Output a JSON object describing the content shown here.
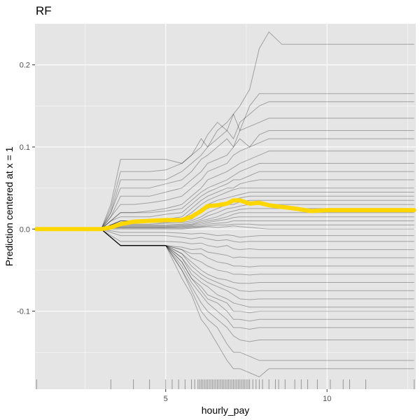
{
  "chart_data": {
    "type": "line",
    "title": "RF",
    "xlabel": "hourly_pay",
    "ylabel": "Prediction centered at x = 1",
    "xlim": [
      0.95,
      12.75
    ],
    "ylim": [
      -0.195,
      0.25
    ],
    "x_ticks": [
      5,
      10
    ],
    "x_tick_labels": [
      "5",
      "10"
    ],
    "y_ticks": [
      -0.1,
      0.0,
      0.1,
      0.2
    ],
    "y_tick_labels": [
      "-0.1",
      "0.0",
      "0.1",
      "0.2"
    ],
    "grid": true,
    "legend": "none",
    "colors": {
      "panel": "#e5e5e5",
      "grid": "#ffffff",
      "ice": "#000000",
      "pdp": "#ffd700"
    },
    "pdp_series": {
      "x": [
        1.0,
        2.0,
        3.0,
        3.3,
        3.6,
        4.0,
        4.5,
        5.0,
        5.5,
        5.8,
        6.1,
        6.3,
        6.6,
        6.9,
        7.1,
        7.3,
        7.6,
        7.9,
        8.2,
        8.6,
        9.0,
        9.5,
        10.0,
        11.0,
        12.0,
        12.7
      ],
      "y": [
        0.0,
        0.0,
        0.0,
        0.002,
        0.006,
        0.009,
        0.01,
        0.011,
        0.011,
        0.015,
        0.022,
        0.028,
        0.029,
        0.031,
        0.035,
        0.035,
        0.031,
        0.032,
        0.029,
        0.027,
        0.025,
        0.022,
        0.023,
        0.023,
        0.023,
        0.023
      ]
    },
    "ice_grid_x": [
      1.0,
      2.0,
      3.0,
      3.3,
      3.6,
      4.0,
      4.5,
      5.0,
      5.5,
      5.8,
      6.1,
      6.3,
      6.6,
      6.9,
      7.1,
      7.3,
      7.6,
      7.9,
      8.2,
      8.6,
      9.0,
      9.5,
      10.0,
      11.0,
      12.0,
      12.7
    ],
    "ice_curves": [
      [
        0,
        0,
        0,
        0.03,
        0.085,
        0.085,
        0.085,
        0.085,
        0.08,
        0.09,
        0.1,
        0.115,
        0.13,
        0.12,
        0.14,
        0.15,
        0.17,
        0.22,
        0.24,
        0.225,
        0.225,
        0.225,
        0.225,
        0.225,
        0.225,
        0.225
      ],
      [
        0,
        0,
        0,
        0.025,
        0.07,
        0.07,
        0.07,
        0.072,
        0.08,
        0.09,
        0.11,
        0.1,
        0.12,
        0.13,
        0.14,
        0.12,
        0.15,
        0.165,
        0.165,
        0.165,
        0.165,
        0.165,
        0.165,
        0.165,
        0.165,
        0.165
      ],
      [
        0,
        0,
        0,
        0.02,
        0.06,
        0.06,
        0.06,
        0.06,
        0.07,
        0.08,
        0.09,
        0.1,
        0.11,
        0.12,
        0.11,
        0.13,
        0.14,
        0.15,
        0.155,
        0.155,
        0.155,
        0.155,
        0.155,
        0.155,
        0.155,
        0.155
      ],
      [
        0,
        0,
        0,
        0.02,
        0.05,
        0.05,
        0.05,
        0.055,
        0.06,
        0.07,
        0.085,
        0.09,
        0.1,
        0.11,
        0.1,
        0.12,
        0.125,
        0.13,
        0.135,
        0.135,
        0.135,
        0.135,
        0.135,
        0.135,
        0.135,
        0.135
      ],
      [
        0,
        0,
        0,
        0.015,
        0.04,
        0.04,
        0.04,
        0.045,
        0.05,
        0.06,
        0.07,
        0.08,
        0.085,
        0.09,
        0.1,
        0.11,
        0.1,
        0.115,
        0.12,
        0.12,
        0.12,
        0.12,
        0.12,
        0.12,
        0.12,
        0.12
      ],
      [
        0,
        0,
        0,
        0.015,
        0.03,
        0.03,
        0.032,
        0.035,
        0.04,
        0.05,
        0.06,
        0.07,
        0.075,
        0.08,
        0.09,
        0.095,
        0.1,
        0.105,
        0.11,
        0.11,
        0.11,
        0.11,
        0.11,
        0.11,
        0.11,
        0.11
      ],
      [
        0,
        0,
        0,
        0.01,
        0.02,
        0.02,
        0.022,
        0.025,
        0.03,
        0.04,
        0.05,
        0.06,
        0.065,
        0.07,
        0.075,
        0.08,
        0.085,
        0.09,
        0.095,
        0.095,
        0.095,
        0.095,
        0.095,
        0.095,
        0.095,
        0.095
      ],
      [
        0,
        0,
        0,
        0.01,
        0.02,
        0.02,
        0.02,
        0.022,
        0.025,
        0.035,
        0.045,
        0.05,
        0.055,
        0.06,
        0.065,
        0.07,
        0.075,
        0.08,
        0.08,
        0.08,
        0.08,
        0.08,
        0.08,
        0.08,
        0.08,
        0.08
      ],
      [
        0,
        0,
        0,
        0.01,
        0.015,
        0.015,
        0.015,
        0.018,
        0.02,
        0.03,
        0.04,
        0.045,
        0.05,
        0.055,
        0.06,
        0.06,
        0.065,
        0.07,
        0.07,
        0.07,
        0.07,
        0.07,
        0.07,
        0.07,
        0.07,
        0.07
      ],
      [
        0,
        0,
        0,
        0.005,
        0.01,
        0.01,
        0.01,
        0.012,
        0.015,
        0.025,
        0.035,
        0.04,
        0.045,
        0.05,
        0.05,
        0.055,
        0.058,
        0.06,
        0.06,
        0.06,
        0.06,
        0.06,
        0.06,
        0.06,
        0.06,
        0.06
      ],
      [
        0,
        0,
        0,
        0.005,
        0.01,
        0.01,
        0.01,
        0.01,
        0.012,
        0.02,
        0.03,
        0.035,
        0.04,
        0.045,
        0.048,
        0.05,
        0.05,
        0.05,
        0.05,
        0.05,
        0.05,
        0.05,
        0.05,
        0.05,
        0.05,
        0.05
      ],
      [
        0,
        0,
        0,
        0.005,
        0.01,
        0.01,
        0.01,
        0.01,
        0.01,
        0.015,
        0.025,
        0.03,
        0.035,
        0.038,
        0.04,
        0.042,
        0.045,
        0.045,
        0.045,
        0.045,
        0.045,
        0.045,
        0.045,
        0.045,
        0.045,
        0.045
      ],
      [
        0,
        0,
        0,
        0.005,
        0.008,
        0.008,
        0.008,
        0.008,
        0.01,
        0.012,
        0.02,
        0.025,
        0.03,
        0.033,
        0.035,
        0.038,
        0.04,
        0.04,
        0.04,
        0.04,
        0.04,
        0.04,
        0.04,
        0.04,
        0.04,
        0.04
      ],
      [
        0,
        0,
        0,
        0.004,
        0.006,
        0.006,
        0.006,
        0.007,
        0.008,
        0.01,
        0.015,
        0.02,
        0.025,
        0.03,
        0.03,
        0.033,
        0.035,
        0.035,
        0.035,
        0.035,
        0.035,
        0.035,
        0.035,
        0.035,
        0.035,
        0.035
      ],
      [
        0,
        0,
        0,
        0.003,
        0.005,
        0.005,
        0.005,
        0.005,
        0.006,
        0.008,
        0.012,
        0.016,
        0.02,
        0.025,
        0.026,
        0.028,
        0.03,
        0.03,
        0.03,
        0.03,
        0.03,
        0.03,
        0.03,
        0.03,
        0.03,
        0.03
      ],
      [
        0,
        0,
        0,
        0.003,
        0.004,
        0.004,
        0.004,
        0.004,
        0.005,
        0.006,
        0.01,
        0.012,
        0.015,
        0.02,
        0.022,
        0.024,
        0.025,
        0.025,
        0.025,
        0.025,
        0.025,
        0.025,
        0.025,
        0.025,
        0.025,
        0.025
      ],
      [
        0,
        0,
        0,
        0.002,
        0.003,
        0.003,
        0.003,
        0.003,
        0.004,
        0.005,
        0.008,
        0.01,
        0.012,
        0.015,
        0.018,
        0.02,
        0.02,
        0.02,
        0.02,
        0.02,
        0.02,
        0.02,
        0.02,
        0.02,
        0.02,
        0.02
      ],
      [
        0,
        0,
        0,
        0.002,
        0.002,
        0.002,
        0.002,
        0.002,
        0.003,
        0.004,
        0.006,
        0.008,
        0.01,
        0.012,
        0.014,
        0.015,
        0.015,
        0.015,
        0.015,
        0.015,
        0.015,
        0.015,
        0.015,
        0.015,
        0.015,
        0.015
      ],
      [
        0,
        0,
        0,
        0.001,
        0.002,
        0.002,
        0.002,
        0.002,
        0.002,
        0.003,
        0.004,
        0.006,
        0.007,
        0.008,
        0.01,
        0.01,
        0.01,
        0.01,
        0.01,
        0.01,
        0.01,
        0.01,
        0.01,
        0.01,
        0.01,
        0.01
      ],
      [
        0,
        0,
        0,
        0.001,
        0.001,
        0.001,
        0.001,
        0.001,
        0.001,
        0.002,
        0.003,
        0.004,
        0.005,
        0.005,
        0.006,
        0.006,
        0.006,
        0.005,
        0.005,
        0.005,
        0.005,
        0.005,
        0.005,
        0.005,
        0.005,
        0.005
      ],
      [
        0,
        0,
        0,
        0,
        0,
        0,
        0,
        0,
        0,
        0.001,
        0.002,
        0.003,
        0.002,
        0.003,
        0.004,
        0.003,
        0.002,
        0.001,
        0,
        0,
        0,
        0,
        0,
        0,
        0,
        0
      ],
      [
        0,
        0,
        0,
        -0.002,
        -0.004,
        -0.004,
        -0.004,
        -0.004,
        -0.005,
        -0.006,
        -0.005,
        -0.006,
        -0.008,
        -0.007,
        -0.008,
        -0.01,
        -0.009,
        -0.008,
        -0.008,
        -0.008,
        -0.008,
        -0.008,
        -0.008,
        -0.008,
        -0.008,
        -0.008
      ],
      [
        0,
        0,
        0,
        -0.004,
        -0.008,
        -0.008,
        -0.008,
        -0.008,
        -0.01,
        -0.012,
        -0.01,
        -0.012,
        -0.014,
        -0.013,
        -0.015,
        -0.016,
        -0.015,
        -0.015,
        -0.015,
        -0.015,
        -0.015,
        -0.015,
        -0.015,
        -0.015,
        -0.015,
        -0.015
      ],
      [
        0,
        0,
        0,
        -0.008,
        -0.015,
        -0.015,
        -0.015,
        -0.015,
        -0.016,
        -0.018,
        -0.017,
        -0.02,
        -0.022,
        -0.02,
        -0.024,
        -0.025,
        -0.024,
        -0.025,
        -0.025,
        -0.025,
        -0.025,
        -0.025,
        -0.025,
        -0.025,
        -0.025,
        -0.025
      ],
      [
        0,
        0,
        0,
        -0.01,
        -0.02,
        -0.02,
        -0.02,
        -0.02,
        -0.022,
        -0.025,
        -0.024,
        -0.028,
        -0.03,
        -0.032,
        -0.035,
        -0.034,
        -0.035,
        -0.035,
        -0.035,
        -0.035,
        -0.035,
        -0.035,
        -0.035,
        -0.035,
        -0.035,
        -0.035
      ],
      [
        0,
        0,
        0,
        -0.01,
        -0.02,
        -0.02,
        -0.02,
        -0.02,
        -0.025,
        -0.03,
        -0.03,
        -0.035,
        -0.04,
        -0.042,
        -0.045,
        -0.045,
        -0.046,
        -0.045,
        -0.045,
        -0.045,
        -0.045,
        -0.045,
        -0.045,
        -0.045,
        -0.045,
        -0.045
      ],
      [
        0,
        0,
        0,
        -0.01,
        -0.02,
        -0.02,
        -0.02,
        -0.02,
        -0.025,
        -0.035,
        -0.04,
        -0.045,
        -0.05,
        -0.052,
        -0.055,
        -0.055,
        -0.056,
        -0.055,
        -0.055,
        -0.055,
        -0.055,
        -0.055,
        -0.055,
        -0.055,
        -0.055,
        -0.055
      ],
      [
        0,
        0,
        0,
        -0.01,
        -0.02,
        -0.02,
        -0.02,
        -0.02,
        -0.03,
        -0.04,
        -0.05,
        -0.055,
        -0.06,
        -0.062,
        -0.065,
        -0.066,
        -0.066,
        -0.065,
        -0.065,
        -0.065,
        -0.065,
        -0.065,
        -0.065,
        -0.065,
        -0.065,
        -0.065
      ],
      [
        0,
        0,
        0,
        -0.01,
        -0.02,
        -0.02,
        -0.02,
        -0.02,
        -0.03,
        -0.045,
        -0.055,
        -0.06,
        -0.065,
        -0.07,
        -0.072,
        -0.075,
        -0.076,
        -0.075,
        -0.075,
        -0.075,
        -0.075,
        -0.075,
        -0.075,
        -0.075,
        -0.075,
        -0.075
      ],
      [
        0,
        0,
        0,
        -0.01,
        -0.02,
        -0.02,
        -0.02,
        -0.02,
        -0.035,
        -0.05,
        -0.06,
        -0.065,
        -0.07,
        -0.075,
        -0.08,
        -0.085,
        -0.086,
        -0.085,
        -0.085,
        -0.085,
        -0.085,
        -0.085,
        -0.085,
        -0.085,
        -0.085,
        -0.085
      ],
      [
        0,
        0,
        0,
        -0.01,
        -0.02,
        -0.02,
        -0.02,
        -0.02,
        -0.035,
        -0.055,
        -0.065,
        -0.07,
        -0.08,
        -0.085,
        -0.09,
        -0.092,
        -0.095,
        -0.095,
        -0.095,
        -0.095,
        -0.095,
        -0.095,
        -0.095,
        -0.095,
        -0.095,
        -0.095
      ],
      [
        0,
        0,
        0,
        -0.01,
        -0.02,
        -0.02,
        -0.02,
        -0.02,
        -0.04,
        -0.06,
        -0.07,
        -0.08,
        -0.085,
        -0.09,
        -0.1,
        -0.1,
        -0.102,
        -0.1,
        -0.1,
        -0.1,
        -0.1,
        -0.1,
        -0.1,
        -0.1,
        -0.1,
        -0.1
      ],
      [
        0,
        0,
        0,
        -0.01,
        -0.02,
        -0.02,
        -0.02,
        -0.02,
        -0.04,
        -0.06,
        -0.075,
        -0.085,
        -0.09,
        -0.1,
        -0.11,
        -0.11,
        -0.112,
        -0.11,
        -0.11,
        -0.11,
        -0.11,
        -0.11,
        -0.11,
        -0.11,
        -0.11,
        -0.11
      ],
      [
        0,
        0,
        0,
        -0.01,
        -0.02,
        -0.02,
        -0.02,
        -0.02,
        -0.045,
        -0.065,
        -0.08,
        -0.09,
        -0.1,
        -0.11,
        -0.12,
        -0.12,
        -0.122,
        -0.12,
        -0.12,
        -0.12,
        -0.12,
        -0.12,
        -0.12,
        -0.12,
        -0.12,
        -0.12
      ],
      [
        0,
        0,
        0,
        -0.01,
        -0.02,
        -0.02,
        -0.02,
        -0.02,
        -0.05,
        -0.07,
        -0.09,
        -0.1,
        -0.11,
        -0.12,
        -0.13,
        -0.135,
        -0.137,
        -0.135,
        -0.135,
        -0.135,
        -0.135,
        -0.135,
        -0.135,
        -0.135,
        -0.135,
        -0.135
      ],
      [
        0,
        0,
        0,
        -0.01,
        -0.02,
        -0.02,
        -0.02,
        -0.02,
        -0.05,
        -0.075,
        -0.1,
        -0.11,
        -0.12,
        -0.14,
        -0.15,
        -0.15,
        -0.155,
        -0.16,
        -0.16,
        -0.16,
        -0.16,
        -0.16,
        -0.16,
        -0.16,
        -0.16,
        -0.16
      ],
      [
        0,
        0,
        0,
        -0.01,
        -0.02,
        -0.02,
        -0.02,
        -0.02,
        -0.06,
        -0.08,
        -0.11,
        -0.12,
        -0.14,
        -0.16,
        -0.17,
        -0.17,
        -0.175,
        -0.18,
        -0.17,
        -0.17,
        -0.17,
        -0.17,
        -0.17,
        -0.17,
        -0.17,
        -0.17
      ]
    ],
    "rug_x": [
      1.0,
      3.3,
      4.0,
      4.5,
      5.0,
      5.2,
      5.4,
      5.6,
      5.8,
      5.9,
      6.0,
      6.05,
      6.1,
      6.15,
      6.2,
      6.25,
      6.3,
      6.35,
      6.4,
      6.45,
      6.5,
      6.55,
      6.6,
      6.65,
      6.7,
      6.75,
      6.8,
      6.85,
      6.9,
      6.95,
      7.0,
      7.05,
      7.1,
      7.15,
      7.2,
      7.25,
      7.3,
      7.35,
      7.4,
      7.45,
      7.5,
      7.55,
      7.6,
      7.7,
      7.8,
      7.9,
      8.0,
      8.2,
      8.4,
      8.5,
      8.7,
      9.0,
      9.2,
      9.4,
      9.7,
      10.1,
      10.5,
      10.7,
      11.2,
      12.7
    ]
  }
}
